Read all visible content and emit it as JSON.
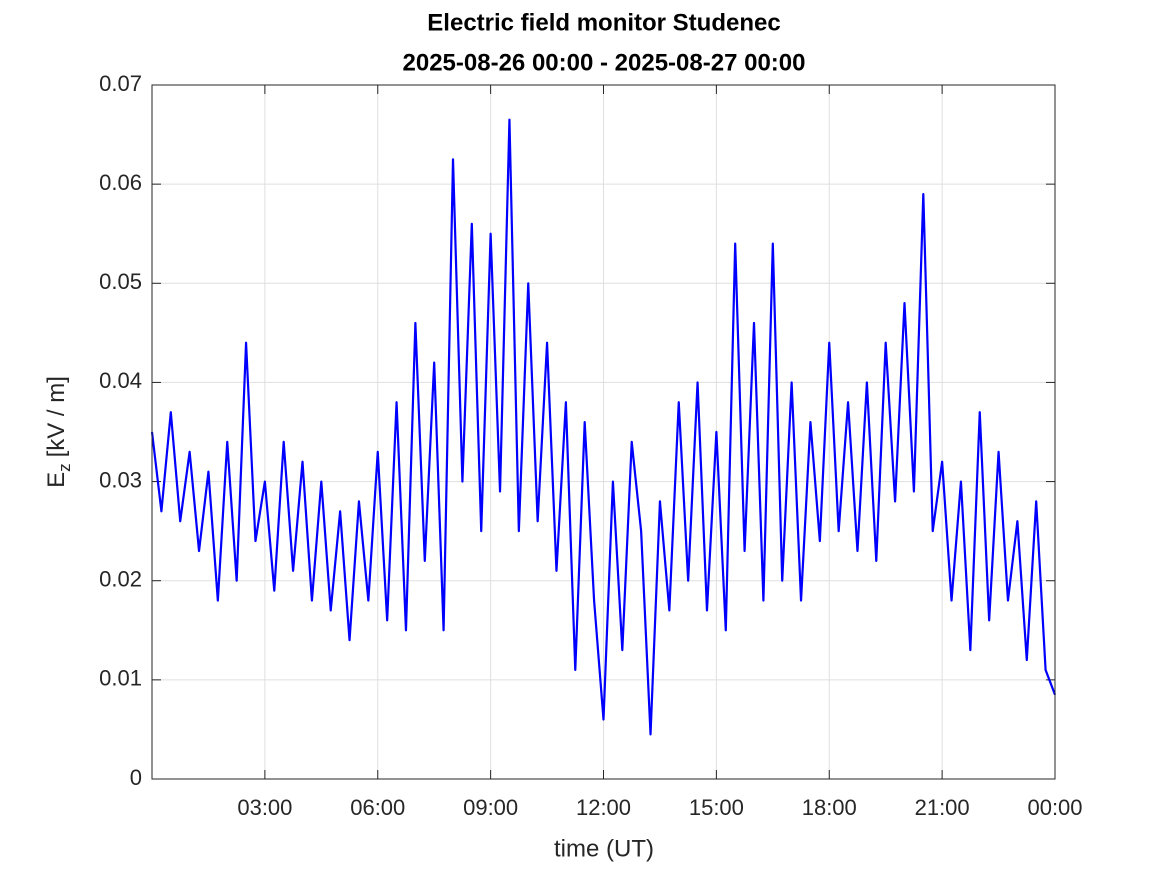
{
  "chart_data": {
    "type": "line",
    "title": "Electric field monitor Studenec",
    "subtitle": "2025-08-26 00:00 - 2025-08-27 00:00",
    "xlabel": "time (UT)",
    "ylabel": {
      "base": "E",
      "sub": "z",
      "rest": "[kV / m]"
    },
    "color": "#0000ff",
    "grid": true,
    "xlim": [
      0,
      24
    ],
    "xticks": [
      {
        "value": 3,
        "label": "03:00"
      },
      {
        "value": 6,
        "label": "06:00"
      },
      {
        "value": 9,
        "label": "09:00"
      },
      {
        "value": 12,
        "label": "12:00"
      },
      {
        "value": 15,
        "label": "15:00"
      },
      {
        "value": 18,
        "label": "18:00"
      },
      {
        "value": 21,
        "label": "21:00"
      },
      {
        "value": 24,
        "label": "00:00"
      }
    ],
    "ylim": [
      0,
      0.07
    ],
    "yticks": [
      0,
      0.01,
      0.02,
      0.03,
      0.04,
      0.05,
      0.06,
      0.07
    ],
    "x": [
      0,
      0.25,
      0.5,
      0.75,
      1,
      1.25,
      1.5,
      1.75,
      2,
      2.25,
      2.5,
      2.75,
      3,
      3.25,
      3.5,
      3.75,
      4,
      4.25,
      4.5,
      4.75,
      5,
      5.25,
      5.5,
      5.75,
      6,
      6.25,
      6.5,
      6.75,
      7,
      7.25,
      7.5,
      7.75,
      8,
      8.25,
      8.5,
      8.75,
      9,
      9.25,
      9.5,
      9.75,
      10,
      10.25,
      10.5,
      10.75,
      11,
      11.25,
      11.5,
      11.75,
      12,
      12.25,
      12.5,
      12.75,
      13,
      13.25,
      13.5,
      13.75,
      14,
      14.25,
      14.5,
      14.75,
      15,
      15.25,
      15.5,
      15.75,
      16,
      16.25,
      16.5,
      16.75,
      17,
      17.25,
      17.5,
      17.75,
      18,
      18.25,
      18.5,
      18.75,
      19,
      19.25,
      19.5,
      19.75,
      20,
      20.25,
      20.5,
      20.75,
      21,
      21.25,
      21.5,
      21.75,
      22,
      22.25,
      22.5,
      22.75,
      23,
      23.25,
      23.5,
      23.75,
      24
    ],
    "values": [
      0.035,
      0.027,
      0.037,
      0.026,
      0.033,
      0.023,
      0.031,
      0.018,
      0.034,
      0.02,
      0.044,
      0.024,
      0.03,
      0.019,
      0.034,
      0.021,
      0.032,
      0.018,
      0.03,
      0.017,
      0.027,
      0.014,
      0.028,
      0.018,
      0.033,
      0.016,
      0.038,
      0.015,
      0.046,
      0.022,
      0.042,
      0.015,
      0.0625,
      0.03,
      0.056,
      0.025,
      0.055,
      0.029,
      0.0665,
      0.025,
      0.05,
      0.026,
      0.044,
      0.021,
      0.038,
      0.011,
      0.036,
      0.018,
      0.006,
      0.03,
      0.013,
      0.034,
      0.025,
      0.0045,
      0.028,
      0.017,
      0.038,
      0.02,
      0.04,
      0.017,
      0.035,
      0.015,
      0.054,
      0.023,
      0.046,
      0.018,
      0.054,
      0.02,
      0.04,
      0.018,
      0.036,
      0.024,
      0.044,
      0.025,
      0.038,
      0.023,
      0.04,
      0.022,
      0.044,
      0.028,
      0.048,
      0.029,
      0.059,
      0.025,
      0.032,
      0.018,
      0.03,
      0.013,
      0.037,
      0.016,
      0.033,
      0.018,
      0.026,
      0.012,
      0.028,
      0.011,
      0.0085
    ]
  }
}
